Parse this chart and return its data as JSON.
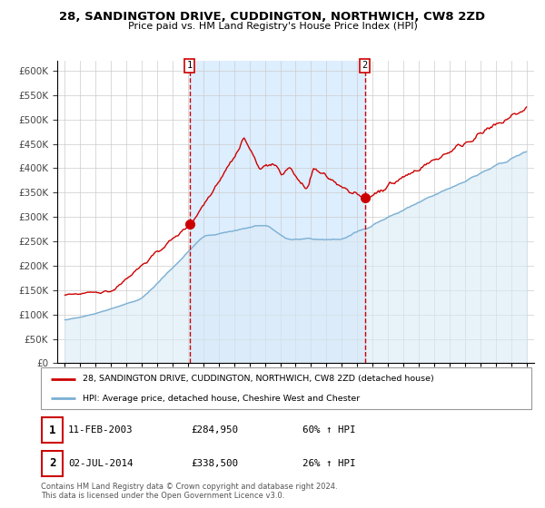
{
  "title": "28, SANDINGTON DRIVE, CUDDINGTON, NORTHWICH, CW8 2ZD",
  "subtitle": "Price paid vs. HM Land Registry's House Price Index (HPI)",
  "legend_line1": "28, SANDINGTON DRIVE, CUDDINGTON, NORTHWICH, CW8 2ZD (detached house)",
  "legend_line2": "HPI: Average price, detached house, Cheshire West and Chester",
  "sale1_label": "1",
  "sale1_date": "11-FEB-2003",
  "sale1_price": "£284,950",
  "sale1_hpi": "60% ↑ HPI",
  "sale2_label": "2",
  "sale2_date": "02-JUL-2014",
  "sale2_price": "£338,500",
  "sale2_hpi": "26% ↑ HPI",
  "footer": "Contains HM Land Registry data © Crown copyright and database right 2024.\nThis data is licensed under the Open Government Licence v3.0.",
  "red_color": "#cc0000",
  "blue_color": "#7aafd4",
  "blue_fill": "#daeaf5",
  "bg_between": "#ddeeff",
  "sale1_year": 2003.1,
  "sale1_value": 284950,
  "sale2_year": 2014.5,
  "sale2_value": 338500,
  "ylim_min": 0,
  "ylim_max": 620000,
  "xlim_min": 1994.5,
  "xlim_max": 2025.5,
  "grid_color": "#cccccc",
  "tick_color": "#444444"
}
